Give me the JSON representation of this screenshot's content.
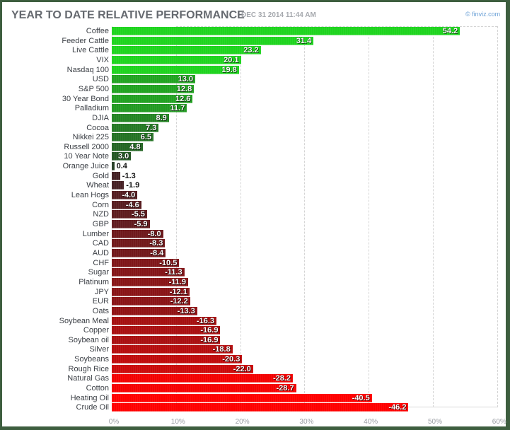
{
  "header": {
    "title": "YEAR TO DATE RELATIVE PERFORMANCE",
    "date": "DEC 31 2014 11:44 AM",
    "credit": "© finviz.com"
  },
  "chart_data": {
    "type": "bar",
    "orientation": "horizontal",
    "title": "YEAR TO DATE RELATIVE PERFORMANCE",
    "subtitle": "DEC 31 2014 11:44 AM",
    "xlabel": "",
    "ylabel": "",
    "xlim": [
      0,
      60
    ],
    "x_ticks": [
      "0%",
      "10%",
      "20%",
      "30%",
      "40%",
      "50%",
      "60%"
    ],
    "grid": "vertical dashed",
    "note": "Bar lengths are absolute values; negative values drawn in red shades, positive in green shades",
    "categories": [
      "Coffee",
      "Feeder Cattle",
      "Live Cattle",
      "VIX",
      "Nasdaq 100",
      "USD",
      "S&P 500",
      "30 Year Bond",
      "Palladium",
      "DJIA",
      "Cocoa",
      "Nikkei 225",
      "Russell 2000",
      "10 Year Note",
      "Orange Juice",
      "Gold",
      "Wheat",
      "Lean Hogs",
      "Corn",
      "NZD",
      "GBP",
      "Lumber",
      "CAD",
      "AUD",
      "CHF",
      "Sugar",
      "Platinum",
      "JPY",
      "EUR",
      "Oats",
      "Soybean Meal",
      "Copper",
      "Soybean oil",
      "Silver",
      "Soybeans",
      "Rough Rice",
      "Natural Gas",
      "Cotton",
      "Heating Oil",
      "Crude Oil"
    ],
    "values": [
      54.2,
      31.4,
      23.2,
      20.1,
      19.8,
      13.0,
      12.8,
      12.6,
      11.7,
      8.9,
      7.3,
      6.5,
      4.8,
      3.0,
      0.4,
      -1.3,
      -1.9,
      -4.0,
      -4.6,
      -5.5,
      -5.9,
      -8.0,
      -8.3,
      -8.4,
      -10.5,
      -11.3,
      -11.9,
      -12.1,
      -12.2,
      -13.3,
      -16.3,
      -16.9,
      -16.9,
      -18.8,
      -20.3,
      -22.0,
      -28.2,
      -28.7,
      -40.5,
      -46.2
    ],
    "value_labels": [
      "54.2",
      "31.4",
      "23.2",
      "20.1",
      "19.8",
      "13.0",
      "12.8",
      "12.6",
      "11.7",
      "8.9",
      "7.3",
      "6.5",
      "4.8",
      "3.0",
      "0.4",
      "-1.3",
      "-1.9",
      "-4.0",
      "-4.6",
      "-5.5",
      "-5.9",
      "-8.0",
      "-8.3",
      "-8.4",
      "-10.5",
      "-11.3",
      "-11.9",
      "-12.1",
      "-12.2",
      "-13.3",
      "-16.3",
      "-16.9",
      "-16.9",
      "-18.8",
      "-20.3",
      "-22.0",
      "-28.2",
      "-28.7",
      "-40.5",
      "-46.2"
    ],
    "colors": {
      "positive_strong": "#1fd41f",
      "positive_weak": "#1f3f1f",
      "negative_weak": "#3b2326",
      "negative_strong": "#ff0000"
    }
  }
}
